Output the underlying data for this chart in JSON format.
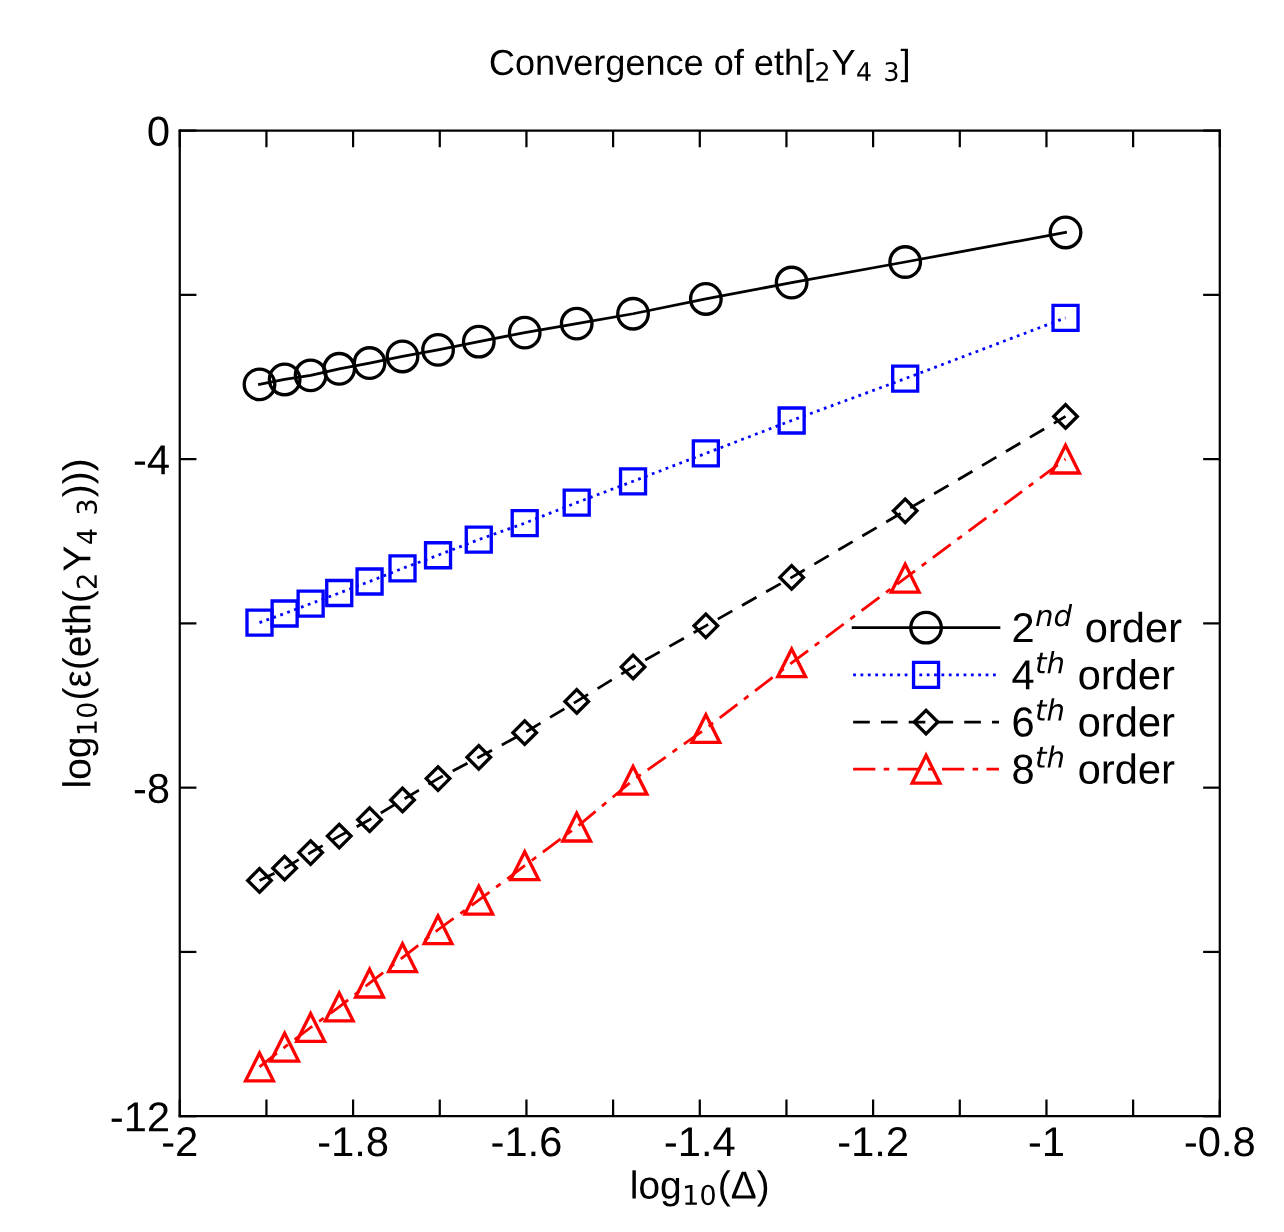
{
  "chart_data": {
    "type": "line",
    "title": "Convergence of eth[$_{2}$Y$_{4}$ $_{3}$]",
    "xlabel": "log$_{10}$(Δ)",
    "ylabel": "log$_{10}$(ε(eth($_{2}$Y$_{4}$ $_{3}$)))",
    "x": [
      -1.908,
      -1.879,
      -1.849,
      -1.816,
      -1.781,
      -1.743,
      -1.702,
      -1.655,
      -1.602,
      -1.542,
      -1.477,
      -1.393,
      -1.294,
      -1.163,
      -0.978
    ],
    "series": [
      {
        "name": "2$^{nd}$ order",
        "color": "#000000",
        "marker": "circle",
        "line_style": "solid",
        "values": [
          -3.09,
          -3.03,
          -2.98,
          -2.9,
          -2.83,
          -2.75,
          -2.67,
          -2.57,
          -2.46,
          -2.35,
          -2.23,
          -2.05,
          -1.85,
          -1.6,
          -1.24
        ]
      },
      {
        "name": "4$^{th}$ order",
        "color": "#0000ff",
        "marker": "square",
        "line_style": "dotted",
        "values": [
          -5.99,
          -5.88,
          -5.76,
          -5.63,
          -5.49,
          -5.33,
          -5.17,
          -4.98,
          -4.78,
          -4.53,
          -4.27,
          -3.93,
          -3.53,
          -3.02,
          -2.28
        ]
      },
      {
        "name": "6$^{th}$ order",
        "color": "#000000",
        "marker": "diamond",
        "line_style": "dashed",
        "values": [
          -9.13,
          -8.98,
          -8.79,
          -8.59,
          -8.39,
          -8.15,
          -7.89,
          -7.63,
          -7.33,
          -6.95,
          -6.53,
          -6.03,
          -5.44,
          -4.63,
          -3.48
        ]
      },
      {
        "name": "8$^{th}$ order",
        "color": "#ff0000",
        "marker": "triangle",
        "line_style": "dashdot",
        "values": [
          -11.4,
          -11.16,
          -10.92,
          -10.67,
          -10.38,
          -10.07,
          -9.73,
          -9.37,
          -8.95,
          -8.48,
          -7.91,
          -7.28,
          -6.48,
          -5.45,
          -4.0
        ]
      }
    ],
    "xlim": [
      -2,
      -0.8
    ],
    "ylim": [
      -12,
      0
    ],
    "xticks": [
      -2,
      {
        "value": -1.9,
        "label": null
      },
      -1.8,
      {
        "value": -1.7,
        "label": null
      },
      -1.6,
      {
        "value": -1.5,
        "label": null
      },
      -1.4,
      {
        "value": -1.3,
        "label": null
      },
      -1.2,
      {
        "value": -1.1,
        "label": null
      },
      -1,
      {
        "value": -0.9,
        "label": null
      },
      -0.8
    ],
    "yticks": [
      -12,
      {
        "value": -10,
        "label": null
      },
      -8,
      {
        "value": -6,
        "label": null
      },
      -4,
      {
        "value": -2,
        "label": null
      },
      0
    ],
    "grid": false,
    "legend": "right"
  }
}
